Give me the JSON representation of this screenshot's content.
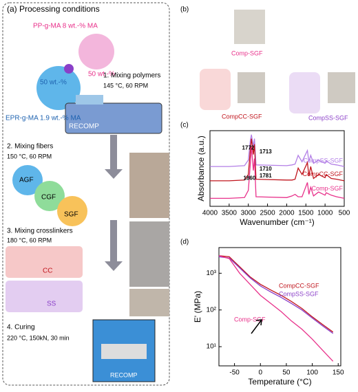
{
  "panel_a": {
    "title": "(a) Processing conditions",
    "polymer_1": "PP-g-MA 8 wt.-% MA",
    "polymer_1_share": "50 wt.-%",
    "polymer_2": "EPR-g-MA 1.9 wt.-% MA",
    "polymer_2_share": "50 wt.-%",
    "steps": [
      {
        "title": "1. Mixing polymers",
        "conditions": "145 °C, 60 RPM"
      },
      {
        "title": "2. Mixing fibers",
        "conditions": "150 °C, 60 RPM"
      },
      {
        "title": "3. Mixing crosslinkers",
        "conditions": "180 °C, 60 RPM"
      },
      {
        "title": "4. Curing",
        "conditions": "220 °C, 150kN, 30 min"
      }
    ],
    "machine_label": "RECOMP",
    "press_label": "RECOMP",
    "fibers": [
      "AGF",
      "CGF",
      "SGF"
    ],
    "crosslinkers": [
      "CC",
      "SS"
    ]
  },
  "panel_b": {
    "label": "(b)",
    "samples": [
      "Comp-SGF",
      "CompCC-SGF",
      "CompSS-SGF"
    ]
  },
  "chart_data": [
    {
      "type": "line",
      "panel_label": "(c)",
      "x_label": "Wavenumber (cm⁻¹)",
      "y_label": "Absorbance (a.u.)",
      "xlim": [
        4000,
        500
      ],
      "xticks": [
        4000,
        3500,
        3000,
        2500,
        2000,
        1500,
        1000,
        500
      ],
      "ylim": [
        0.1,
        1.05
      ],
      "x": [
        4000,
        3500,
        3100,
        3000,
        2950,
        2920,
        2870,
        2840,
        2800,
        2000,
        1860,
        1781,
        1700,
        1600,
        1460,
        1420,
        1375,
        1300,
        1170,
        1000,
        970,
        840,
        700,
        500
      ],
      "series": [
        {
          "name": "CompSS-SGF",
          "color": "#b27ee6",
          "values": [
            0.6,
            0.6,
            0.61,
            0.68,
            0.92,
            1.0,
            0.85,
            0.95,
            0.62,
            0.61,
            0.62,
            0.63,
            0.74,
            0.66,
            0.8,
            0.66,
            0.74,
            0.64,
            0.68,
            0.64,
            0.67,
            0.63,
            0.62,
            0.6
          ]
        },
        {
          "name": "CompCC-SGF",
          "color": "#c0141c",
          "values": [
            0.42,
            0.42,
            0.43,
            0.5,
            0.8,
            0.95,
            0.75,
            0.88,
            0.44,
            0.43,
            0.43,
            0.44,
            0.58,
            0.5,
            0.65,
            0.48,
            0.6,
            0.45,
            0.5,
            0.46,
            0.5,
            0.45,
            0.44,
            0.42
          ]
        },
        {
          "name": "Comp-SGF",
          "color": "#e8308a",
          "values": [
            0.2,
            0.2,
            0.21,
            0.3,
            0.62,
            0.85,
            0.55,
            0.7,
            0.22,
            0.21,
            0.23,
            0.25,
            0.22,
            0.22,
            0.4,
            0.25,
            0.34,
            0.23,
            0.28,
            0.24,
            0.27,
            0.24,
            0.22,
            0.2
          ]
        }
      ],
      "annotations": [
        "1713",
        "1772",
        "1710",
        "1781",
        "1860"
      ]
    },
    {
      "type": "line",
      "panel_label": "(d)",
      "x_label": "Temperature (°C)",
      "y_label": "E' (MPa)",
      "log_y": true,
      "xlim": [
        -80,
        155
      ],
      "xticks": [
        -50,
        0,
        50,
        100,
        150
      ],
      "ylim": [
        3,
        5000
      ],
      "yticks": [
        {
          "value": 10,
          "label": "10¹"
        },
        {
          "value": 100,
          "label": "10²"
        },
        {
          "value": 1000,
          "label": "10³"
        }
      ],
      "x": [
        -80,
        -60,
        -40,
        -20,
        0,
        20,
        40,
        60,
        80,
        100,
        120,
        140
      ],
      "series": [
        {
          "name": "CompCC-SGF",
          "color": "#c0141c",
          "values": [
            3000,
            2800,
            1500,
            800,
            500,
            350,
            250,
            170,
            110,
            65,
            40,
            25
          ]
        },
        {
          "name": "CompSS-SGF",
          "color": "#8a3fc8",
          "values": [
            2800,
            2600,
            1400,
            750,
            450,
            310,
            220,
            150,
            100,
            60,
            37,
            23
          ]
        },
        {
          "name": "Comp-SGF",
          "color": "#e8308a",
          "values": [
            3000,
            2500,
            1000,
            500,
            250,
            150,
            90,
            50,
            30,
            16,
            8,
            4
          ]
        }
      ]
    }
  ]
}
